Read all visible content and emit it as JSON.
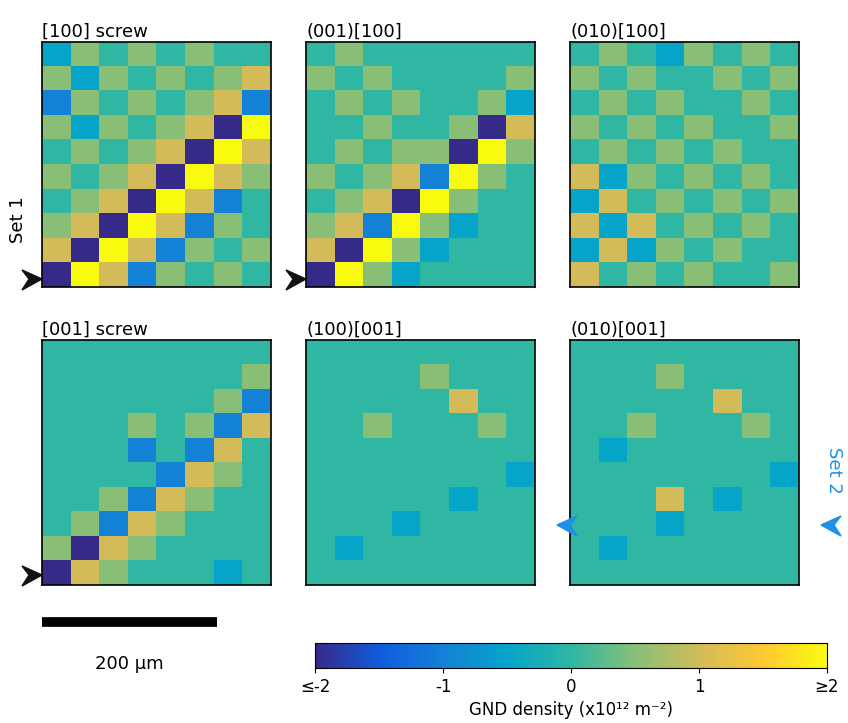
{
  "chart_data": [
    {
      "type": "heatmap",
      "title": "[100] screw",
      "xlim": [
        0,
        262
      ],
      "ylim": [
        0,
        280
      ],
      "tick_labels": false,
      "cells": [
        [
          -0.5,
          0.5,
          0,
          0.5,
          0,
          0.5,
          0,
          0
        ],
        [
          0.5,
          -0.5,
          0.5,
          0,
          0.5,
          0,
          0.5,
          1
        ],
        [
          -1,
          0.5,
          0,
          0.5,
          0,
          0.5,
          1,
          -1
        ],
        [
          0.5,
          -0.5,
          0.5,
          0,
          0.5,
          1,
          -2,
          2
        ],
        [
          0,
          0.5,
          0,
          0.5,
          1,
          -2,
          2,
          1
        ],
        [
          0.5,
          0,
          0.5,
          1,
          -2,
          2,
          1,
          0.5
        ],
        [
          0,
          0.5,
          1,
          -2,
          2,
          1,
          -1,
          0
        ],
        [
          0.5,
          1,
          -2,
          2,
          1,
          -1,
          0.5,
          0
        ],
        [
          1,
          -2,
          2,
          1,
          -1,
          0.5,
          0,
          0.5
        ],
        [
          -2,
          2,
          1,
          -1,
          0.5,
          0,
          0.5,
          0
        ]
      ]
    },
    {
      "type": "heatmap",
      "title": "(001)[100]",
      "xlim": [
        0,
        262
      ],
      "ylim": [
        0,
        280
      ],
      "tick_labels": false,
      "cells": [
        [
          0,
          0.5,
          0,
          0,
          0,
          0,
          0,
          0
        ],
        [
          0.5,
          0,
          0.5,
          0,
          0,
          0,
          0,
          0.5
        ],
        [
          0,
          0.5,
          0,
          0.5,
          0,
          0,
          0.5,
          -0.5
        ],
        [
          0,
          0,
          0.5,
          0,
          0,
          0.5,
          -2,
          1
        ],
        [
          0,
          0.5,
          0,
          0.5,
          0.5,
          -2,
          2,
          0.5
        ],
        [
          0.5,
          0,
          0.5,
          1,
          -1,
          2,
          0.5,
          0
        ],
        [
          0,
          0.5,
          1,
          -2,
          2,
          0.5,
          0,
          0
        ],
        [
          0.5,
          1,
          -1,
          2,
          0.5,
          -0.5,
          0,
          0
        ],
        [
          1,
          -2,
          2,
          0.5,
          -0.5,
          0,
          0,
          0
        ],
        [
          -2,
          2,
          0.5,
          -0.5,
          0,
          0,
          0,
          0
        ]
      ]
    },
    {
      "type": "heatmap",
      "title": "(010)[100]",
      "xlim": [
        0,
        262
      ],
      "ylim": [
        0,
        280
      ],
      "tick_labels": false,
      "cells": [
        [
          0,
          0.5,
          0,
          -0.5,
          0.5,
          0,
          0.5,
          0
        ],
        [
          0.5,
          0,
          0.5,
          0,
          0,
          0.5,
          0,
          0.5
        ],
        [
          0,
          0.5,
          0,
          0.5,
          0,
          0,
          0.5,
          0
        ],
        [
          0.5,
          0,
          0.5,
          0,
          0.5,
          0,
          0,
          0.5
        ],
        [
          0,
          0.5,
          0,
          0.5,
          0,
          0.5,
          0,
          0
        ],
        [
          1,
          -0.5,
          0.5,
          0,
          0.5,
          0,
          0.5,
          0
        ],
        [
          -0.5,
          1,
          0,
          0.5,
          0,
          0.5,
          0,
          0.5
        ],
        [
          1,
          -0.5,
          1,
          0,
          0.5,
          0,
          0.5,
          0
        ],
        [
          -0.5,
          1,
          -0.5,
          0.5,
          0,
          0.5,
          0,
          0
        ],
        [
          1,
          0,
          0.5,
          0,
          0.5,
          0,
          0,
          0.5
        ]
      ]
    },
    {
      "type": "heatmap",
      "title": "[001] screw",
      "xlim": [
        0,
        262
      ],
      "ylim": [
        0,
        280
      ],
      "tick_labels": false,
      "cells": [
        [
          0,
          0,
          0,
          0,
          0,
          0,
          0,
          0
        ],
        [
          0,
          0,
          0,
          0,
          0,
          0,
          0,
          0.5
        ],
        [
          0,
          0,
          0,
          0,
          0,
          0,
          0.5,
          -1
        ],
        [
          0,
          0,
          0,
          0.5,
          0,
          0.5,
          -1,
          1
        ],
        [
          0,
          0,
          0,
          -1,
          0,
          -1,
          1,
          0
        ],
        [
          0,
          0,
          0,
          0,
          -1,
          1,
          0.5,
          0
        ],
        [
          0,
          0,
          0.5,
          -1,
          1,
          0.5,
          0,
          0
        ],
        [
          0,
          0.5,
          -1,
          1,
          0.5,
          0,
          0,
          0
        ],
        [
          0.5,
          -2,
          1,
          0.5,
          0,
          0,
          0,
          0
        ],
        [
          -2,
          1,
          0.5,
          0,
          0,
          0,
          -0.5,
          0
        ]
      ]
    },
    {
      "type": "heatmap",
      "title": "(100)[001]",
      "xlim": [
        0,
        262
      ],
      "ylim": [
        0,
        280
      ],
      "tick_labels": false,
      "cells": [
        [
          0,
          0,
          0,
          0,
          0,
          0,
          0,
          0
        ],
        [
          0,
          0,
          0,
          0,
          0.5,
          0,
          0,
          0
        ],
        [
          0,
          0,
          0,
          0,
          0,
          1,
          0,
          0
        ],
        [
          0,
          0,
          0.5,
          0,
          0,
          0,
          0.5,
          0
        ],
        [
          0,
          0,
          0,
          0,
          0,
          0,
          0,
          0
        ],
        [
          0,
          0,
          0,
          0,
          0,
          0,
          0,
          -0.5
        ],
        [
          0,
          0,
          0,
          0,
          0,
          -0.5,
          0,
          0
        ],
        [
          0,
          0,
          0,
          -0.5,
          0,
          0,
          0,
          0
        ],
        [
          0,
          -0.5,
          0,
          0,
          0,
          0,
          0,
          0
        ],
        [
          0,
          0,
          0,
          0,
          0,
          0,
          0,
          0
        ]
      ]
    },
    {
      "type": "heatmap",
      "title": "(010)[001]",
      "xlim": [
        0,
        262
      ],
      "ylim": [
        0,
        280
      ],
      "tick_labels": false,
      "cells": [
        [
          0,
          0,
          0,
          0,
          0,
          0,
          0,
          0
        ],
        [
          0,
          0,
          0,
          0.5,
          0,
          0,
          0,
          0
        ],
        [
          0,
          0,
          0,
          0,
          0,
          1,
          0,
          0
        ],
        [
          0,
          0,
          0.5,
          0,
          0,
          0,
          0.5,
          0
        ],
        [
          0,
          -0.5,
          0,
          0,
          0,
          0,
          0,
          0
        ],
        [
          0,
          0,
          0,
          0,
          0,
          0,
          0,
          -0.5
        ],
        [
          0,
          0,
          0,
          1,
          0,
          -0.5,
          0,
          0
        ],
        [
          0,
          0,
          0,
          -0.5,
          0,
          0,
          0,
          0
        ],
        [
          0,
          -0.5,
          0,
          0,
          0,
          0,
          0,
          0
        ],
        [
          0,
          0,
          0,
          0,
          0,
          0,
          0,
          0
        ]
      ]
    }
  ],
  "colorbar": {
    "label": "GND density (x10¹² m⁻²)",
    "range": [
      -2,
      2
    ],
    "ticks": [
      {
        "value": -2,
        "label": "≤-2"
      },
      -1,
      0,
      1,
      {
        "value": 2,
        "label": "≥2"
      }
    ]
  },
  "scale_bar": {
    "label": "200 µm",
    "value": 200
  },
  "annotations": [
    {
      "text": "Set 1",
      "color": "#000000"
    },
    {
      "text": "Set 2",
      "color": "#1e90e8"
    }
  ]
}
